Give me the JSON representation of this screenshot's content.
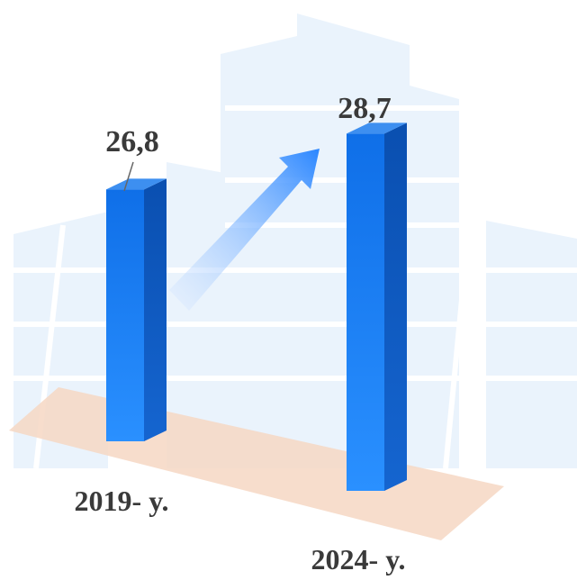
{
  "chart_data": {
    "type": "bar3d",
    "categories": [
      "2019- y.",
      "2024- y."
    ],
    "values": [
      26.8,
      28.7
    ],
    "value_labels": [
      "26,8",
      "28,7"
    ],
    "color": "#1e7cf2"
  }
}
